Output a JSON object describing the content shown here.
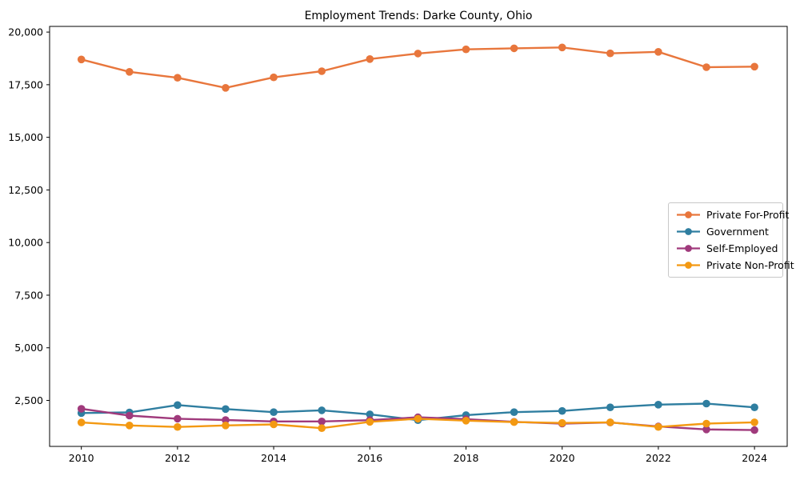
{
  "chart_data": {
    "type": "line",
    "title": "Employment Trends: Darke County, Ohio",
    "xlabel": "",
    "ylabel": "",
    "grid": false,
    "legend_position": "center right",
    "x": [
      2010,
      2011,
      2012,
      2013,
      2014,
      2015,
      2016,
      2017,
      2018,
      2019,
      2020,
      2021,
      2022,
      2023,
      2024
    ],
    "xticks": [
      2010,
      2012,
      2014,
      2016,
      2018,
      2020,
      2022,
      2024
    ],
    "xtick_labels": [
      "2010",
      "2012",
      "2014",
      "2016",
      "2018",
      "2020",
      "2022",
      "2024"
    ],
    "yticks": [
      2500,
      5000,
      7500,
      10000,
      12500,
      15000,
      17500,
      20000
    ],
    "ytick_labels": [
      "2,500",
      "5,000",
      "7,500",
      "10,000",
      "12,500",
      "15,000",
      "17,500",
      "20,000"
    ],
    "xlim": [
      2009.34,
      2024.68
    ],
    "ylim": [
      315,
      20270
    ],
    "series": [
      {
        "name": "Private For-Profit",
        "color": "#e8763c",
        "values": [
          18700,
          18110,
          17830,
          17350,
          17850,
          18140,
          18720,
          18980,
          19180,
          19230,
          19270,
          18990,
          19060,
          18330,
          18360
        ]
      },
      {
        "name": "Government",
        "color": "#2f7ea0",
        "values": [
          1900,
          1930,
          2280,
          2090,
          1940,
          2030,
          1840,
          1560,
          1800,
          1940,
          2000,
          2170,
          2300,
          2350,
          2170
        ]
      },
      {
        "name": "Self-Employed",
        "color": "#a03a7c",
        "values": [
          2100,
          1780,
          1630,
          1570,
          1500,
          1500,
          1560,
          1700,
          1610,
          1480,
          1400,
          1450,
          1260,
          1120,
          1090
        ]
      },
      {
        "name": "Private Non-Profit",
        "color": "#f39912",
        "values": [
          1450,
          1310,
          1240,
          1310,
          1360,
          1180,
          1480,
          1630,
          1540,
          1470,
          1430,
          1460,
          1240,
          1400,
          1460
        ]
      }
    ]
  }
}
